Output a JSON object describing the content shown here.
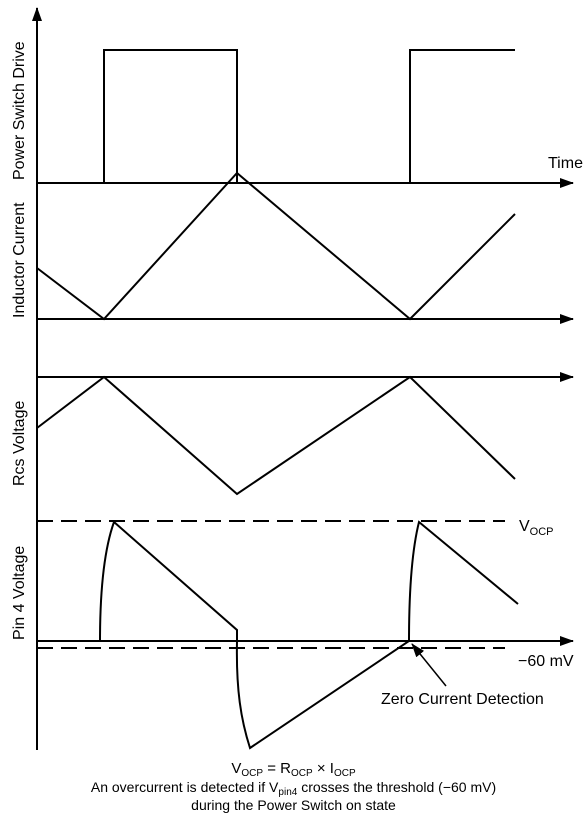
{
  "axes": {
    "time_label": "Time",
    "power_switch_label": "Power Switch Drive",
    "inductor_current_label": "Inductor Current",
    "rcs_voltage_label": "Rcs Voltage",
    "pin4_voltage_label": "Pin 4 Voltage"
  },
  "annotations": {
    "vocp_main": "V",
    "vocp_sub": "OCP",
    "threshold": "−60 mV",
    "zero_current": "Zero Current Detection"
  },
  "footer": {
    "eq_v": "V",
    "eq_v_sub": "OCP",
    "eq_mid": " = R",
    "eq_r_sub": "OCP",
    "eq_times": " × I",
    "eq_i_sub": "OCP",
    "line2_a": "An overcurrent is detected if V",
    "line2_sub": "pin4",
    "line2_b": " crosses the threshold (−60 mV)",
    "line3": "during the Power Switch on state"
  },
  "colors": {
    "stroke": "#000000"
  }
}
